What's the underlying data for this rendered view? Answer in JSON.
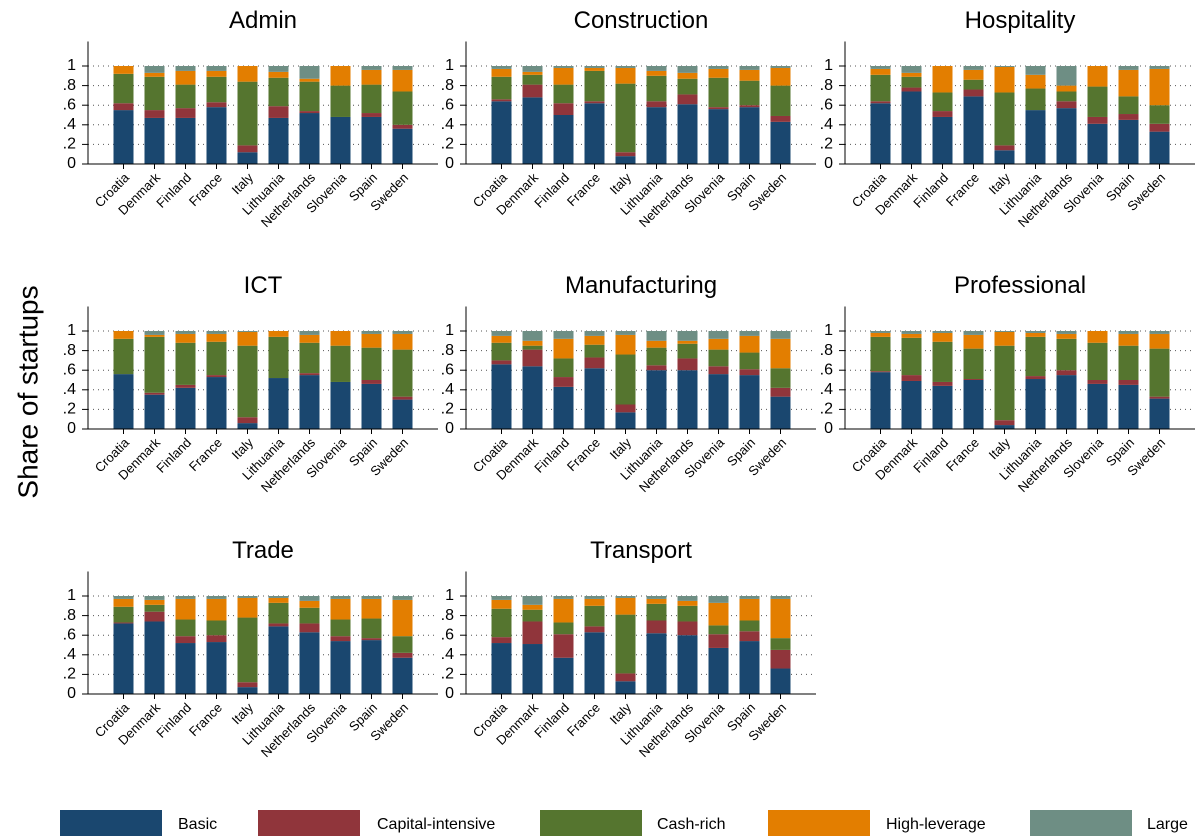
{
  "ylabel": "Share of startups",
  "chart_data": [
    {
      "type": "bar",
      "stacked": true,
      "title": "Admin",
      "categories": [
        "Croatia",
        "Denmark",
        "Finland",
        "France",
        "Italy",
        "Lithuania",
        "Netherlands",
        "Slovenia",
        "Spain",
        "Sweden"
      ],
      "series": [
        {
          "name": "Basic",
          "color": "#1a476f",
          "values": [
            0.55,
            0.47,
            0.47,
            0.58,
            0.12,
            0.47,
            0.52,
            0.48,
            0.48,
            0.36
          ]
        },
        {
          "name": "Capital-intensive",
          "color": "#90353b",
          "values": [
            0.07,
            0.08,
            0.1,
            0.05,
            0.07,
            0.12,
            0.02,
            0,
            0.04,
            0.04
          ]
        },
        {
          "name": "Cash-rich",
          "color": "#55752f",
          "values": [
            0.3,
            0.34,
            0.24,
            0.26,
            0.65,
            0.29,
            0.3,
            0.32,
            0.29,
            0.34
          ]
        },
        {
          "name": "High-leverage",
          "color": "#e37e00",
          "values": [
            0.08,
            0.04,
            0.14,
            0.06,
            0.16,
            0.06,
            0.03,
            0.2,
            0.15,
            0.22
          ]
        },
        {
          "name": "Large",
          "color": "#6e8e84",
          "values": [
            0,
            0.07,
            0.05,
            0.05,
            0,
            0.06,
            0.13,
            0,
            0.04,
            0.04
          ]
        }
      ],
      "ylim": [
        0,
        1.25
      ],
      "yticks": [
        0,
        {
          "value": 0.2,
          "label": ".2"
        },
        {
          "value": 0.4,
          "label": ".4"
        },
        {
          "value": 0.6,
          "label": ".6"
        },
        {
          "value": 0.8,
          "label": ".8"
        },
        1
      ],
      "grid": true
    },
    {
      "type": "bar",
      "stacked": true,
      "title": "Construction",
      "categories": [
        "Croatia",
        "Denmark",
        "Finland",
        "France",
        "Italy",
        "Lithuania",
        "Netherlands",
        "Slovenia",
        "Spain",
        "Sweden"
      ],
      "series": [
        {
          "name": "Basic",
          "color": "#1a476f",
          "values": [
            0.64,
            0.68,
            0.5,
            0.62,
            0.08,
            0.58,
            0.61,
            0.56,
            0.58,
            0.43
          ]
        },
        {
          "name": "Capital-intensive",
          "color": "#90353b",
          "values": [
            0.02,
            0.13,
            0.12,
            0.02,
            0.04,
            0.06,
            0.1,
            0.02,
            0.02,
            0.06
          ]
        },
        {
          "name": "Cash-rich",
          "color": "#55752f",
          "values": [
            0.23,
            0.1,
            0.19,
            0.31,
            0.7,
            0.26,
            0.16,
            0.3,
            0.25,
            0.31
          ]
        },
        {
          "name": "High-leverage",
          "color": "#e37e00",
          "values": [
            0.08,
            0.03,
            0.17,
            0.03,
            0.16,
            0.05,
            0.06,
            0.09,
            0.11,
            0.18
          ]
        },
        {
          "name": "Large",
          "color": "#6e8e84",
          "values": [
            0.03,
            0.06,
            0.02,
            0.02,
            0.02,
            0.05,
            0.07,
            0.03,
            0.04,
            0.02
          ]
        }
      ],
      "ylim": [
        0,
        1.25
      ],
      "yticks": [
        0,
        {
          "value": 0.2,
          "label": ".2"
        },
        {
          "value": 0.4,
          "label": ".4"
        },
        {
          "value": 0.6,
          "label": ".6"
        },
        {
          "value": 0.8,
          "label": ".8"
        },
        1
      ],
      "grid": true
    },
    {
      "type": "bar",
      "stacked": true,
      "title": "Hospitality",
      "categories": [
        "Croatia",
        "Denmark",
        "Finland",
        "France",
        "Italy",
        "Lithuania",
        "Netherlands",
        "Slovenia",
        "Spain",
        "Sweden"
      ],
      "series": [
        {
          "name": "Basic",
          "color": "#1a476f",
          "values": [
            0.62,
            0.74,
            0.48,
            0.69,
            0.14,
            0.55,
            0.57,
            0.41,
            0.45,
            0.33
          ]
        },
        {
          "name": "Capital-intensive",
          "color": "#90353b",
          "values": [
            0.02,
            0.04,
            0.06,
            0.07,
            0.05,
            0,
            0.07,
            0.07,
            0.06,
            0.08
          ]
        },
        {
          "name": "Cash-rich",
          "color": "#55752f",
          "values": [
            0.27,
            0.11,
            0.19,
            0.1,
            0.54,
            0.22,
            0.1,
            0.31,
            0.18,
            0.19
          ]
        },
        {
          "name": "High-leverage",
          "color": "#e37e00",
          "values": [
            0.06,
            0.04,
            0.27,
            0.1,
            0.26,
            0.14,
            0.06,
            0.21,
            0.27,
            0.37
          ]
        },
        {
          "name": "Large",
          "color": "#6e8e84",
          "values": [
            0.03,
            0.07,
            0,
            0.04,
            0.01,
            0.09,
            0.2,
            0,
            0.04,
            0.03
          ]
        }
      ],
      "ylim": [
        0,
        1.25
      ],
      "yticks": [
        0,
        {
          "value": 0.2,
          "label": ".2"
        },
        {
          "value": 0.4,
          "label": ".4"
        },
        {
          "value": 0.6,
          "label": ".6"
        },
        {
          "value": 0.8,
          "label": ".8"
        },
        1
      ],
      "grid": true
    },
    {
      "type": "bar",
      "stacked": true,
      "title": "ICT",
      "categories": [
        "Croatia",
        "Denmark",
        "Finland",
        "France",
        "Italy",
        "Lithuania",
        "Netherlands",
        "Slovenia",
        "Spain",
        "Sweden"
      ],
      "series": [
        {
          "name": "Basic",
          "color": "#1a476f",
          "values": [
            0.56,
            0.35,
            0.42,
            0.53,
            0.06,
            0.52,
            0.55,
            0.48,
            0.46,
            0.3
          ]
        },
        {
          "name": "Capital-intensive",
          "color": "#90353b",
          "values": [
            0,
            0.02,
            0.03,
            0.02,
            0.06,
            0,
            0.02,
            0,
            0.04,
            0.03
          ]
        },
        {
          "name": "Cash-rich",
          "color": "#55752f",
          "values": [
            0.36,
            0.57,
            0.43,
            0.34,
            0.73,
            0.42,
            0.31,
            0.37,
            0.33,
            0.48
          ]
        },
        {
          "name": "High-leverage",
          "color": "#e37e00",
          "values": [
            0.08,
            0.02,
            0.09,
            0.08,
            0.14,
            0.06,
            0.08,
            0.15,
            0.14,
            0.16
          ]
        },
        {
          "name": "Large",
          "color": "#6e8e84",
          "values": [
            0,
            0.04,
            0.03,
            0.03,
            0.01,
            0,
            0.04,
            0,
            0.03,
            0.03
          ]
        }
      ],
      "ylim": [
        0,
        1.25
      ],
      "yticks": [
        0,
        {
          "value": 0.2,
          "label": ".2"
        },
        {
          "value": 0.4,
          "label": ".4"
        },
        {
          "value": 0.6,
          "label": ".6"
        },
        {
          "value": 0.8,
          "label": ".8"
        },
        1
      ],
      "grid": true
    },
    {
      "type": "bar",
      "stacked": true,
      "title": "Manufacturing",
      "categories": [
        "Croatia",
        "Denmark",
        "Finland",
        "France",
        "Italy",
        "Lithuania",
        "Netherlands",
        "Slovenia",
        "Spain",
        "Sweden"
      ],
      "series": [
        {
          "name": "Basic",
          "color": "#1a476f",
          "values": [
            0.66,
            0.64,
            0.43,
            0.62,
            0.17,
            0.6,
            0.6,
            0.56,
            0.55,
            0.33
          ]
        },
        {
          "name": "Capital-intensive",
          "color": "#90353b",
          "values": [
            0.04,
            0.17,
            0.1,
            0.11,
            0.08,
            0.05,
            0.12,
            0.08,
            0.06,
            0.09
          ]
        },
        {
          "name": "Cash-rich",
          "color": "#55752f",
          "values": [
            0.18,
            0.04,
            0.19,
            0.13,
            0.51,
            0.18,
            0.15,
            0.17,
            0.17,
            0.2
          ]
        },
        {
          "name": "High-leverage",
          "color": "#e37e00",
          "values": [
            0.07,
            0.05,
            0.2,
            0.09,
            0.2,
            0.07,
            0.03,
            0.11,
            0.17,
            0.3
          ]
        },
        {
          "name": "Large",
          "color": "#6e8e84",
          "values": [
            0.05,
            0.1,
            0.08,
            0.05,
            0.04,
            0.1,
            0.1,
            0.08,
            0.05,
            0.08
          ]
        }
      ],
      "ylim": [
        0,
        1.25
      ],
      "yticks": [
        0,
        {
          "value": 0.2,
          "label": ".2"
        },
        {
          "value": 0.4,
          "label": ".4"
        },
        {
          "value": 0.6,
          "label": ".6"
        },
        {
          "value": 0.8,
          "label": ".8"
        },
        1
      ],
      "grid": true
    },
    {
      "type": "bar",
      "stacked": true,
      "title": "Professional",
      "categories": [
        "Croatia",
        "Denmark",
        "Finland",
        "France",
        "Italy",
        "Lithuania",
        "Netherlands",
        "Slovenia",
        "Spain",
        "Sweden"
      ],
      "series": [
        {
          "name": "Basic",
          "color": "#1a476f",
          "values": [
            0.58,
            0.49,
            0.44,
            0.5,
            0.04,
            0.51,
            0.55,
            0.46,
            0.45,
            0.31
          ]
        },
        {
          "name": "Capital-intensive",
          "color": "#90353b",
          "values": [
            0.01,
            0.06,
            0.04,
            0.01,
            0.05,
            0.03,
            0.05,
            0.04,
            0.05,
            0.02
          ]
        },
        {
          "name": "Cash-rich",
          "color": "#55752f",
          "values": [
            0.35,
            0.38,
            0.41,
            0.31,
            0.76,
            0.4,
            0.32,
            0.38,
            0.35,
            0.49
          ]
        },
        {
          "name": "High-leverage",
          "color": "#e37e00",
          "values": [
            0.04,
            0.04,
            0.09,
            0.14,
            0.14,
            0.04,
            0.05,
            0.12,
            0.12,
            0.15
          ]
        },
        {
          "name": "Large",
          "color": "#6e8e84",
          "values": [
            0.02,
            0.03,
            0.02,
            0.04,
            0.01,
            0.02,
            0.03,
            0,
            0.03,
            0.03
          ]
        }
      ],
      "ylim": [
        0,
        1.25
      ],
      "yticks": [
        0,
        {
          "value": 0.2,
          "label": ".2"
        },
        {
          "value": 0.4,
          "label": ".4"
        },
        {
          "value": 0.6,
          "label": ".6"
        },
        {
          "value": 0.8,
          "label": ".8"
        },
        1
      ],
      "grid": true
    },
    {
      "type": "bar",
      "stacked": true,
      "title": "Trade",
      "categories": [
        "Croatia",
        "Denmark",
        "Finland",
        "France",
        "Italy",
        "Lithuania",
        "Netherlands",
        "Slovenia",
        "Spain",
        "Sweden"
      ],
      "series": [
        {
          "name": "Basic",
          "color": "#1a476f",
          "values": [
            0.72,
            0.74,
            0.52,
            0.53,
            0.07,
            0.69,
            0.63,
            0.54,
            0.55,
            0.37
          ]
        },
        {
          "name": "Capital-intensive",
          "color": "#90353b",
          "values": [
            0.01,
            0.1,
            0.07,
            0.07,
            0.05,
            0.03,
            0.09,
            0.05,
            0.02,
            0.05
          ]
        },
        {
          "name": "Cash-rich",
          "color": "#55752f",
          "values": [
            0.16,
            0.07,
            0.17,
            0.15,
            0.66,
            0.21,
            0.16,
            0.17,
            0.2,
            0.17
          ]
        },
        {
          "name": "High-leverage",
          "color": "#e37e00",
          "values": [
            0.08,
            0.05,
            0.21,
            0.22,
            0.2,
            0.05,
            0.07,
            0.21,
            0.2,
            0.37
          ]
        },
        {
          "name": "Large",
          "color": "#6e8e84",
          "values": [
            0.03,
            0.04,
            0.03,
            0.03,
            0.02,
            0.02,
            0.05,
            0.03,
            0.03,
            0.04
          ]
        }
      ],
      "ylim": [
        0,
        1.25
      ],
      "yticks": [
        0,
        {
          "value": 0.2,
          "label": ".2"
        },
        {
          "value": 0.4,
          "label": ".4"
        },
        {
          "value": 0.6,
          "label": ".6"
        },
        {
          "value": 0.8,
          "label": ".8"
        },
        1
      ],
      "grid": true
    },
    {
      "type": "bar",
      "stacked": true,
      "title": "Transport",
      "categories": [
        "Croatia",
        "Denmark",
        "Finland",
        "France",
        "Italy",
        "Lithuania",
        "Netherlands",
        "Slovenia",
        "Spain",
        "Sweden"
      ],
      "series": [
        {
          "name": "Basic",
          "color": "#1a476f",
          "values": [
            0.52,
            0.51,
            0.37,
            0.63,
            0.13,
            0.62,
            0.6,
            0.47,
            0.54,
            0.26
          ]
        },
        {
          "name": "Capital-intensive",
          "color": "#90353b",
          "values": [
            0.06,
            0.23,
            0.24,
            0.06,
            0.08,
            0.13,
            0.14,
            0.14,
            0.1,
            0.19
          ]
        },
        {
          "name": "Cash-rich",
          "color": "#55752f",
          "values": [
            0.29,
            0.12,
            0.12,
            0.21,
            0.6,
            0.17,
            0.16,
            0.09,
            0.11,
            0.12
          ]
        },
        {
          "name": "High-leverage",
          "color": "#e37e00",
          "values": [
            0.09,
            0.05,
            0.24,
            0.07,
            0.17,
            0.05,
            0.05,
            0.23,
            0.22,
            0.4
          ]
        },
        {
          "name": "Large",
          "color": "#6e8e84",
          "values": [
            0.04,
            0.09,
            0.03,
            0.03,
            0.02,
            0.03,
            0.05,
            0.07,
            0.03,
            0.03
          ]
        }
      ],
      "ylim": [
        0,
        1.25
      ],
      "yticks": [
        0,
        {
          "value": 0.2,
          "label": ".2"
        },
        {
          "value": 0.4,
          "label": ".4"
        },
        {
          "value": 0.6,
          "label": ".6"
        },
        {
          "value": 0.8,
          "label": ".8"
        },
        1
      ],
      "grid": true
    }
  ]
}
